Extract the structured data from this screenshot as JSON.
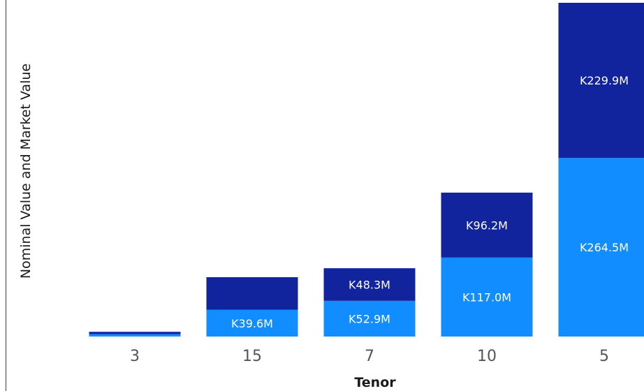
{
  "chart_data": {
    "type": "bar",
    "stacked": true,
    "ylabel": "Nominal Value and Market Value",
    "xlabel": "Tenor",
    "categories": [
      "3",
      "15",
      "7",
      "10",
      "5"
    ],
    "series": [
      {
        "color": "#118dff",
        "values": [
          3.5,
          39.6,
          52.9,
          117.0,
          264.5
        ],
        "labels": [
          "",
          "K39.6M",
          "K52.9M",
          "K117.0M",
          "K264.5M"
        ]
      },
      {
        "color": "#12239e",
        "values": [
          3.5,
          48.3,
          48.3,
          96.2,
          229.9
        ],
        "labels": [
          "",
          "",
          "K48.3M",
          "K96.2M",
          "K229.9M"
        ]
      }
    ],
    "ylim": [
      0,
      494.4
    ],
    "grid": false,
    "legend": "none"
  }
}
